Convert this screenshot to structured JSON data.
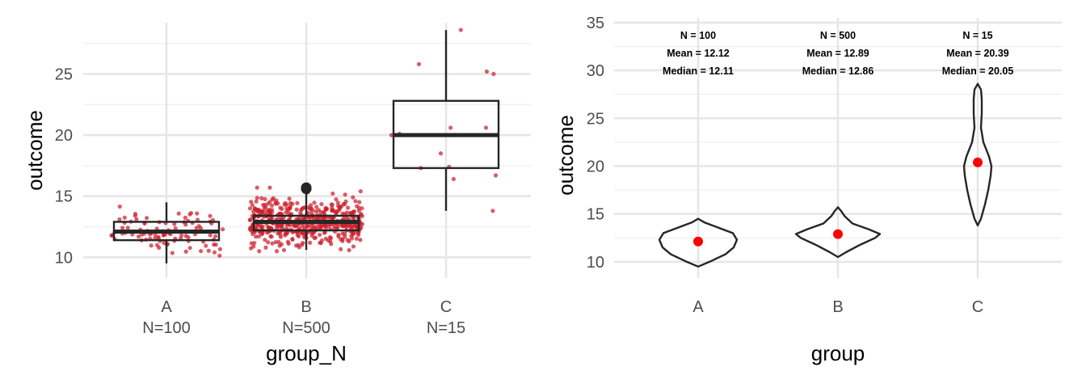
{
  "chart_data": [
    {
      "type": "box",
      "title": "",
      "xlabel": "group_N",
      "ylabel": "outcome",
      "categories": [
        "A",
        "B",
        "C"
      ],
      "category_sublabels": [
        "N=100",
        "N=500",
        "N=15"
      ],
      "ylim": [
        8.3,
        29.2
      ],
      "yticks": [
        10,
        15,
        20,
        25
      ],
      "grid": true,
      "point_color": "#cc1f2d",
      "box_color": "#262626",
      "boxes": [
        {
          "category": "A",
          "q1": 11.4,
          "median": 12.1,
          "q3": 12.9,
          "whisker_low": 9.5,
          "whisker_high": 14.5,
          "outliers": []
        },
        {
          "category": "B",
          "q1": 12.2,
          "median": 12.9,
          "q3": 13.4,
          "whisker_low": 10.6,
          "whisker_high": 15.2,
          "outliers": [
            15.7,
            15.6
          ]
        },
        {
          "category": "C",
          "q1": 17.3,
          "median": 20.0,
          "q3": 22.8,
          "whisker_low": 13.8,
          "whisker_high": 28.6,
          "outliers": []
        }
      ],
      "jitter_points": [
        {
          "category": "C",
          "values": [
            28.6,
            25.8,
            25.0,
            25.2,
            20.0,
            20.1,
            20.6,
            20.6,
            20.0,
            18.5,
            17.4,
            17.3,
            16.4,
            16.7,
            13.8
          ]
        }
      ]
    },
    {
      "type": "violin",
      "title": "",
      "xlabel": "group",
      "ylabel": "outcome",
      "categories": [
        "A",
        "B",
        "C"
      ],
      "ylim": [
        8.3,
        35.5
      ],
      "yticks": [
        10,
        15,
        20,
        25,
        30,
        35
      ],
      "grid": true,
      "mean_color": "#ff0000",
      "groups": [
        {
          "category": "A",
          "n": 100,
          "mean": 12.12,
          "median": 12.11,
          "min": 9.5,
          "max": 14.5
        },
        {
          "category": "B",
          "n": 500,
          "mean": 12.89,
          "median": 12.86,
          "min": 10.5,
          "max": 15.7
        },
        {
          "category": "C",
          "n": 15,
          "mean": 20.39,
          "median": 20.05,
          "min": 13.8,
          "max": 28.6
        }
      ],
      "annotations": [
        {
          "category": "A",
          "lines": [
            "N = 100",
            "Mean = 12.12",
            "Median = 12.11"
          ]
        },
        {
          "category": "B",
          "lines": [
            "N = 500",
            "Mean = 12.89",
            "Median = 12.86"
          ]
        },
        {
          "category": "C",
          "lines": [
            "N = 15",
            "Mean = 20.39",
            "Median = 20.05"
          ]
        }
      ]
    }
  ]
}
